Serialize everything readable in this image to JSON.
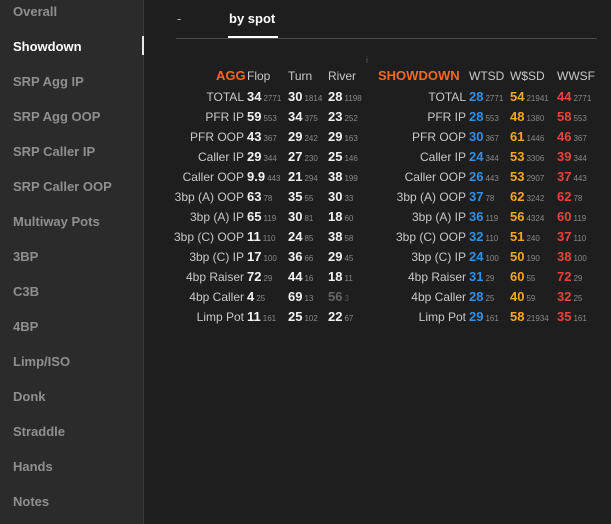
{
  "sidebar": {
    "items": [
      {
        "label": "Overall",
        "active": false
      },
      {
        "label": "Showdown",
        "active": true
      },
      {
        "label": "SRP Agg IP",
        "active": false
      },
      {
        "label": "SRP Agg OOP",
        "active": false
      },
      {
        "label": "SRP Caller IP",
        "active": false
      },
      {
        "label": "SRP Caller OOP",
        "active": false
      },
      {
        "label": "Multiway Pots",
        "active": false
      },
      {
        "label": "3BP",
        "active": false
      },
      {
        "label": "C3B",
        "active": false
      },
      {
        "label": "4BP",
        "active": false
      },
      {
        "label": "Limp/ISO",
        "active": false
      },
      {
        "label": "Donk",
        "active": false
      },
      {
        "label": "Straddle",
        "active": false
      },
      {
        "label": "Hands",
        "active": false
      },
      {
        "label": "Notes",
        "active": false
      }
    ]
  },
  "tabs": {
    "dash": "-",
    "by_spot": "by spot"
  },
  "hint": "i",
  "colors": {
    "blue": "#2f90e8",
    "orange": "#f5a623",
    "red": "#e8443a",
    "title": "#f06a24"
  },
  "agg_table": {
    "title": "AGG",
    "columns": [
      "Flop",
      "Turn",
      "River"
    ],
    "rows": [
      {
        "label": "TOTAL",
        "vals": [
          [
            "34",
            "2771"
          ],
          [
            "30",
            "1814"
          ],
          [
            "28",
            "1198"
          ]
        ]
      },
      {
        "label": "PFR IP",
        "vals": [
          [
            "59",
            "553"
          ],
          [
            "34",
            "375"
          ],
          [
            "23",
            "252"
          ]
        ]
      },
      {
        "label": "PFR OOP",
        "vals": [
          [
            "43",
            "367"
          ],
          [
            "29",
            "242"
          ],
          [
            "29",
            "163"
          ]
        ]
      },
      {
        "label": "Caller IP",
        "vals": [
          [
            "29",
            "344"
          ],
          [
            "27",
            "230"
          ],
          [
            "25",
            "146"
          ]
        ]
      },
      {
        "label": "Caller OOP",
        "vals": [
          [
            "9.9",
            "443"
          ],
          [
            "21",
            "294"
          ],
          [
            "38",
            "199"
          ]
        ]
      },
      {
        "label": "3bp (A) OOP",
        "vals": [
          [
            "63",
            "78"
          ],
          [
            "35",
            "55"
          ],
          [
            "30",
            "33"
          ]
        ]
      },
      {
        "label": "3bp (A) IP",
        "vals": [
          [
            "65",
            "119"
          ],
          [
            "30",
            "81"
          ],
          [
            "18",
            "60"
          ]
        ]
      },
      {
        "label": "3bp (C) OOP",
        "vals": [
          [
            "11",
            "110"
          ],
          [
            "24",
            "85"
          ],
          [
            "38",
            "58"
          ]
        ]
      },
      {
        "label": "3bp (C) IP",
        "vals": [
          [
            "17",
            "100"
          ],
          [
            "36",
            "66"
          ],
          [
            "29",
            "45"
          ]
        ]
      },
      {
        "label": "4bp Raiser",
        "vals": [
          [
            "72",
            "29"
          ],
          [
            "44",
            "16"
          ],
          [
            "18",
            "11"
          ]
        ]
      },
      {
        "label": "4bp Caller",
        "vals": [
          [
            "4",
            "25"
          ],
          [
            "69",
            "13"
          ],
          [
            "56",
            "3"
          ]
        ]
      },
      {
        "label": "Limp Pot",
        "vals": [
          [
            "11",
            "161"
          ],
          [
            "25",
            "102"
          ],
          [
            "22",
            "67"
          ]
        ]
      }
    ]
  },
  "showdown_table": {
    "title": "SHOWDOWN",
    "columns": [
      "WTSD",
      "W$SD",
      "WWSF"
    ],
    "rows": [
      {
        "label": "TOTAL",
        "vals": [
          [
            "28",
            "2771"
          ],
          [
            "54",
            "21941"
          ],
          [
            "44",
            "2771"
          ]
        ]
      },
      {
        "label": "PFR IP",
        "vals": [
          [
            "28",
            "553"
          ],
          [
            "48",
            "1380"
          ],
          [
            "58",
            "553"
          ]
        ]
      },
      {
        "label": "PFR OOP",
        "vals": [
          [
            "30",
            "367"
          ],
          [
            "61",
            "1446"
          ],
          [
            "46",
            "367"
          ]
        ]
      },
      {
        "label": "Caller IP",
        "vals": [
          [
            "24",
            "344"
          ],
          [
            "53",
            "3306"
          ],
          [
            "39",
            "344"
          ]
        ]
      },
      {
        "label": "Caller OOP",
        "vals": [
          [
            "26",
            "443"
          ],
          [
            "53",
            "2907"
          ],
          [
            "37",
            "443"
          ]
        ]
      },
      {
        "label": "3bp (A) OOP",
        "vals": [
          [
            "37",
            "78"
          ],
          [
            "62",
            "3242"
          ],
          [
            "62",
            "78"
          ]
        ]
      },
      {
        "label": "3bp (A) IP",
        "vals": [
          [
            "36",
            "119"
          ],
          [
            "56",
            "4324"
          ],
          [
            "60",
            "119"
          ]
        ]
      },
      {
        "label": "3bp (C) OOP",
        "vals": [
          [
            "32",
            "110"
          ],
          [
            "51",
            "240"
          ],
          [
            "37",
            "110"
          ]
        ]
      },
      {
        "label": "3bp (C) IP",
        "vals": [
          [
            "24",
            "100"
          ],
          [
            "50",
            "190"
          ],
          [
            "38",
            "100"
          ]
        ]
      },
      {
        "label": "4bp Raiser",
        "vals": [
          [
            "31",
            "29"
          ],
          [
            "60",
            "55"
          ],
          [
            "72",
            "29"
          ]
        ]
      },
      {
        "label": "4bp Caller",
        "vals": [
          [
            "28",
            "25"
          ],
          [
            "40",
            "59"
          ],
          [
            "32",
            "25"
          ]
        ]
      },
      {
        "label": "Limp Pot",
        "vals": [
          [
            "29",
            "161"
          ],
          [
            "58",
            "21934"
          ],
          [
            "35",
            "161"
          ]
        ]
      }
    ]
  }
}
